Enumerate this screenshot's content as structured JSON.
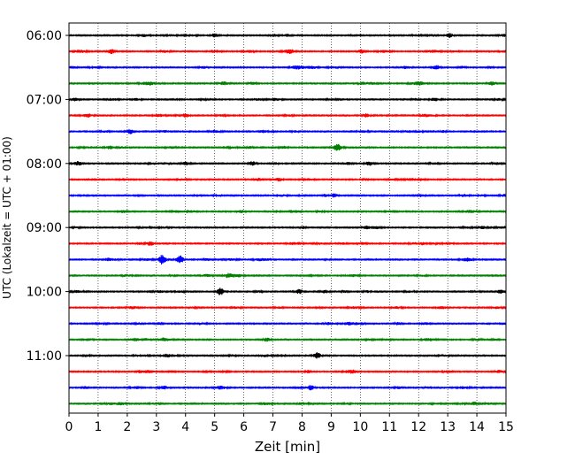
{
  "chart_data": {
    "type": "line",
    "title": "",
    "xlabel": "Zeit  [min]",
    "ylabel": "UTC (Lokalzeit = UTC + 01:00)",
    "xlim": [
      0,
      15
    ],
    "x_ticks": [
      0,
      1,
      2,
      3,
      4,
      5,
      6,
      7,
      8,
      9,
      10,
      11,
      12,
      13,
      14,
      15
    ],
    "y_tick_labels": [
      "06:00",
      "07:00",
      "08:00",
      "09:00",
      "10:00",
      "11:00"
    ],
    "grid": "vertical dotted",
    "row_colors": [
      "#000000",
      "#ff0000",
      "#0000ff",
      "#008000"
    ],
    "rows": [
      {
        "start": "06:00",
        "color": "#000000"
      },
      {
        "start": "06:15",
        "color": "#ff0000"
      },
      {
        "start": "06:30",
        "color": "#0000ff"
      },
      {
        "start": "06:45",
        "color": "#008000"
      },
      {
        "start": "07:00",
        "color": "#000000"
      },
      {
        "start": "07:15",
        "color": "#ff0000"
      },
      {
        "start": "07:30",
        "color": "#0000ff"
      },
      {
        "start": "07:45",
        "color": "#008000"
      },
      {
        "start": "08:00",
        "color": "#000000"
      },
      {
        "start": "08:15",
        "color": "#ff0000"
      },
      {
        "start": "08:30",
        "color": "#0000ff"
      },
      {
        "start": "08:45",
        "color": "#008000"
      },
      {
        "start": "09:00",
        "color": "#000000"
      },
      {
        "start": "09:15",
        "color": "#ff0000"
      },
      {
        "start": "09:30",
        "color": "#0000ff"
      },
      {
        "start": "09:45",
        "color": "#008000"
      },
      {
        "start": "10:00",
        "color": "#000000"
      },
      {
        "start": "10:15",
        "color": "#ff0000"
      },
      {
        "start": "10:30",
        "color": "#0000ff"
      },
      {
        "start": "10:45",
        "color": "#008000"
      },
      {
        "start": "11:00",
        "color": "#000000"
      },
      {
        "start": "11:15",
        "color": "#ff0000"
      },
      {
        "start": "11:30",
        "color": "#0000ff"
      },
      {
        "start": "11:45",
        "color": "#008000"
      }
    ],
    "events": [
      {
        "row": 0,
        "t": 5.0,
        "amp": 0.5
      },
      {
        "row": 0,
        "t": 7.5,
        "amp": 0.35
      },
      {
        "row": 1,
        "t": 1.45,
        "amp": 0.6
      },
      {
        "row": 1,
        "t": 10.05,
        "amp": 0.5
      },
      {
        "row": 2,
        "t": 12.6,
        "amp": 0.6
      },
      {
        "row": 3,
        "t": 14.5,
        "amp": 0.5
      },
      {
        "row": 3,
        "t": 12.0,
        "amp": 0.3
      },
      {
        "row": 4,
        "t": 0.2,
        "amp": 0.4
      },
      {
        "row": 5,
        "t": 4.0,
        "amp": 0.5
      },
      {
        "row": 6,
        "t": 2.1,
        "amp": 0.6
      },
      {
        "row": 7,
        "t": 9.2,
        "amp": 0.5
      },
      {
        "row": 8,
        "t": 6.3,
        "amp": 0.55
      },
      {
        "row": 8,
        "t": 10.3,
        "amp": 0.6
      },
      {
        "row": 10,
        "t": 9.1,
        "amp": 0.5
      },
      {
        "row": 11,
        "t": 5.9,
        "amp": 0.4
      },
      {
        "row": 12,
        "t": 10.2,
        "amp": 0.4
      },
      {
        "row": 13,
        "t": 2.8,
        "amp": 0.55
      },
      {
        "row": 14,
        "t": 3.2,
        "amp": 1.3
      },
      {
        "row": 14,
        "t": 3.8,
        "amp": 1.1
      },
      {
        "row": 16,
        "t": 5.2,
        "amp": 1.0
      },
      {
        "row": 16,
        "t": 7.9,
        "amp": 0.6
      },
      {
        "row": 16,
        "t": 14.8,
        "amp": 0.5
      },
      {
        "row": 19,
        "t": 6.8,
        "amp": 0.45
      },
      {
        "row": 20,
        "t": 8.5,
        "amp": 0.6
      },
      {
        "row": 21,
        "t": 9.7,
        "amp": 0.4
      },
      {
        "row": 22,
        "t": 8.3,
        "amp": 0.6
      },
      {
        "row": 23,
        "t": 13.9,
        "amp": 0.45
      }
    ]
  }
}
